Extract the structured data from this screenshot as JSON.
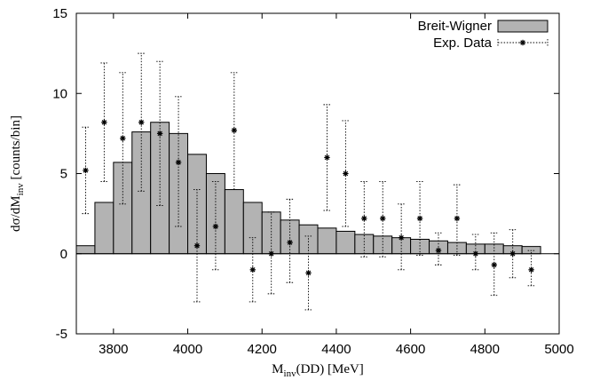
{
  "chart_data": {
    "type": "bar",
    "xlabel": "M",
    "xlabel_sub": "inv",
    "xlabel_rest": "(DD) [MeV]",
    "ylabel": "dσ/dM",
    "ylabel_sub": "inv",
    "ylabel_rest": " [counts/bin]",
    "xlim": [
      3700,
      5000
    ],
    "ylim": [
      -5,
      15
    ],
    "xticks": [
      3800,
      4000,
      4200,
      4400,
      4600,
      4800,
      5000
    ],
    "yticks": [
      -5,
      0,
      5,
      10,
      15
    ],
    "bin_width": 50,
    "legend_position": "top-right",
    "series": [
      {
        "name": "Breit-Wigner",
        "style": "histogram",
        "color": "#b3b3b3",
        "bin_left": [
          3700,
          3750,
          3800,
          3850,
          3900,
          3950,
          4000,
          4050,
          4100,
          4150,
          4200,
          4250,
          4300,
          4350,
          4400,
          4450,
          4500,
          4550,
          4600,
          4650,
          4700,
          4750,
          4800,
          4850,
          4900
        ],
        "values": [
          0.5,
          3.2,
          5.7,
          7.6,
          8.2,
          7.5,
          6.2,
          5.0,
          4.0,
          3.2,
          2.6,
          2.1,
          1.8,
          1.6,
          1.4,
          1.2,
          1.1,
          1.0,
          0.9,
          0.8,
          0.7,
          0.6,
          0.6,
          0.5,
          0.45
        ]
      },
      {
        "name": "Exp. Data",
        "style": "errorbars",
        "color": "#000000",
        "x": [
          3725,
          3775,
          3825,
          3875,
          3925,
          3975,
          4025,
          4075,
          4125,
          4175,
          4225,
          4275,
          4325,
          4375,
          4425,
          4475,
          4525,
          4575,
          4625,
          4675,
          4725,
          4775,
          4825,
          4875,
          4925
        ],
        "y": [
          5.2,
          8.2,
          7.2,
          8.2,
          7.5,
          5.7,
          0.5,
          1.7,
          7.7,
          -1.0,
          0.0,
          0.7,
          -1.2,
          6.0,
          5.0,
          2.2,
          2.2,
          1.0,
          2.2,
          0.2,
          2.2,
          0.0,
          -0.7,
          0.0,
          -1.0
        ],
        "y_low": [
          2.5,
          4.5,
          3.1,
          3.9,
          3.0,
          1.7,
          -3.0,
          -1.0,
          4.0,
          -3.0,
          -2.5,
          -1.8,
          -3.5,
          2.7,
          1.7,
          -0.2,
          -0.2,
          -1.0,
          -0.1,
          -0.7,
          -0.1,
          -1.0,
          -2.6,
          -1.5,
          -2.0
        ],
        "y_high": [
          7.9,
          11.9,
          11.3,
          12.5,
          12.0,
          9.8,
          4.0,
          4.5,
          11.3,
          1.0,
          2.6,
          3.4,
          1.1,
          9.3,
          8.3,
          4.5,
          4.5,
          3.1,
          4.5,
          1.3,
          4.3,
          1.2,
          1.3,
          1.5,
          0.2
        ]
      }
    ]
  }
}
